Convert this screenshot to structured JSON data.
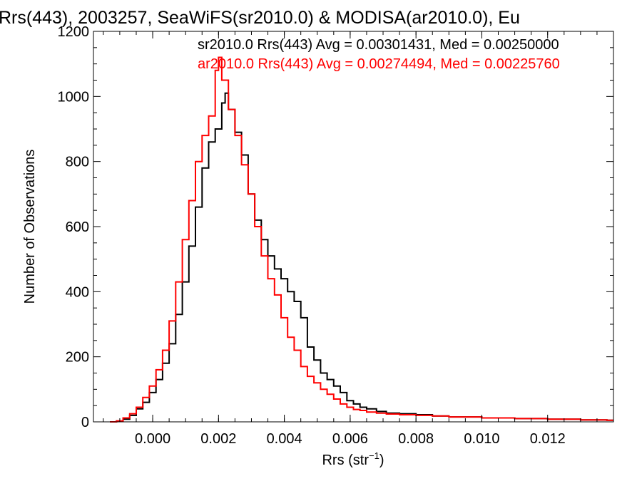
{
  "chart_data": {
    "type": "line",
    "title": "Rrs(443), 2003257, SeaWiFS(sr2010.0) & MODISA(ar2010.0), Eu",
    "xlabel": "Rrs (str",
    "xlabel_sup": "−1",
    "xlabel_close": ")",
    "ylabel": "Number of Observations",
    "xlim": [
      -0.0018,
      0.014
    ],
    "ylim": [
      0,
      1200
    ],
    "x_ticks": [
      0.0,
      0.002,
      0.004,
      0.006,
      0.008,
      0.01,
      0.012
    ],
    "x_tick_labels": [
      "0.000",
      "0.002",
      "0.004",
      "0.006",
      "0.008",
      "0.010",
      "0.012"
    ],
    "y_ticks": [
      0,
      200,
      400,
      600,
      800,
      1000,
      1200
    ],
    "y_tick_labels": [
      "0",
      "200",
      "400",
      "600",
      "800",
      "1000",
      "1200"
    ],
    "legend": [
      {
        "text": "sr2010.0 Rrs(443) Avg = 0.00301431, Med = 0.00250000",
        "color": "#000000"
      },
      {
        "text": "ar2010.0 Rrs(443) Avg = 0.00274494, Med = 0.00225760",
        "color": "#ff0000"
      }
    ],
    "series": [
      {
        "color": "#000000",
        "x": [
          -0.0013,
          -0.0011,
          -0.0009,
          -0.0007,
          -0.0005,
          -0.0003,
          -0.0001,
          0.0001,
          0.0003,
          0.0005,
          0.0007,
          0.0009,
          0.0011,
          0.0013,
          0.0015,
          0.0017,
          0.0019,
          0.0021,
          0.0022,
          0.0023,
          0.0025,
          0.0027,
          0.0029,
          0.0031,
          0.0033,
          0.0035,
          0.0037,
          0.0039,
          0.0041,
          0.0043,
          0.0045,
          0.0047,
          0.0049,
          0.0051,
          0.0053,
          0.0055,
          0.0057,
          0.0059,
          0.0061,
          0.0063,
          0.0065,
          0.0068,
          0.0071,
          0.0075,
          0.008,
          0.0085,
          0.009,
          0.01,
          0.011,
          0.012,
          0.013,
          0.0138
        ],
        "y": [
          0,
          2,
          8,
          20,
          40,
          60,
          90,
          130,
          180,
          240,
          330,
          430,
          540,
          660,
          780,
          860,
          900,
          980,
          1010,
          960,
          890,
          820,
          700,
          620,
          560,
          510,
          470,
          440,
          400,
          370,
          320,
          230,
          190,
          150,
          130,
          110,
          90,
          65,
          55,
          45,
          40,
          32,
          27,
          25,
          22,
          18,
          15,
          12,
          10,
          8,
          6,
          5
        ]
      },
      {
        "color": "#ff0000",
        "x": [
          -0.0013,
          -0.0011,
          -0.0009,
          -0.0007,
          -0.0005,
          -0.0003,
          -0.0001,
          0.0001,
          0.0003,
          0.0005,
          0.0007,
          0.0009,
          0.0011,
          0.0013,
          0.0015,
          0.0017,
          0.0019,
          0.002,
          0.0021,
          0.0023,
          0.0025,
          0.0027,
          0.0029,
          0.0031,
          0.0033,
          0.0035,
          0.0037,
          0.0039,
          0.0041,
          0.0043,
          0.0045,
          0.0047,
          0.0049,
          0.0051,
          0.0053,
          0.0055,
          0.0057,
          0.0059,
          0.0061,
          0.0063,
          0.0065,
          0.0068,
          0.0071,
          0.0075,
          0.008,
          0.0085,
          0.009,
          0.01,
          0.011,
          0.012,
          0.013,
          0.0138
        ],
        "y": [
          0,
          3,
          12,
          25,
          45,
          75,
          110,
          160,
          220,
          310,
          430,
          560,
          680,
          800,
          880,
          940,
          1080,
          1120,
          1050,
          960,
          880,
          790,
          700,
          600,
          510,
          440,
          390,
          320,
          260,
          220,
          170,
          140,
          120,
          100,
          85,
          70,
          55,
          45,
          38,
          35,
          30,
          27,
          24,
          22,
          20,
          18,
          15,
          12,
          10,
          8,
          6,
          5
        ]
      }
    ]
  }
}
